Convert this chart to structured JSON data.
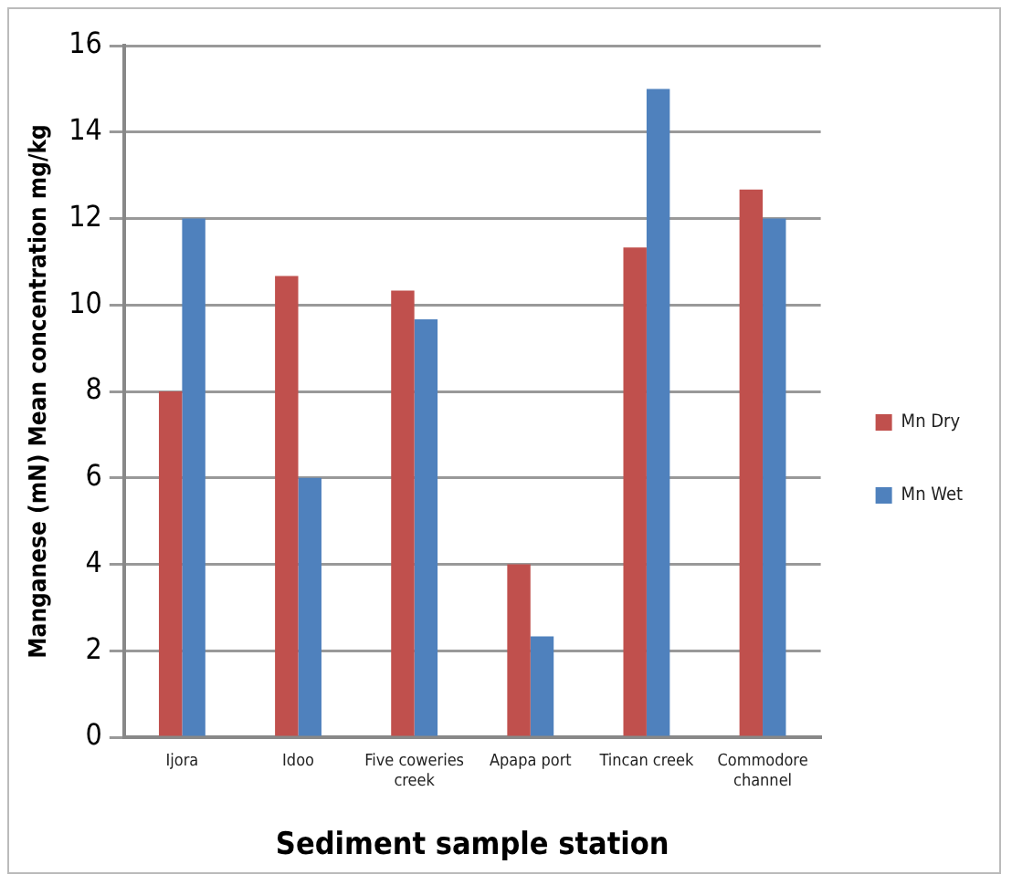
{
  "chart_data": {
    "type": "bar",
    "xlabel": "Sediment sample station",
    "ylabel": "Manganese (mN) Mean concentration mg/kg",
    "categories": [
      "Ijora",
      "Idoo",
      "Five coweries creek",
      "Apapa port",
      "Tincan creek",
      "Commodore channel"
    ],
    "series": [
      {
        "name": "Mn Dry",
        "color": "#c0504d",
        "values": [
          8,
          10.67,
          10.33,
          4,
          11.33,
          12.67
        ]
      },
      {
        "name": "Mn Wet",
        "color": "#4f81bd",
        "values": [
          12,
          6,
          9.67,
          2.33,
          15,
          12
        ]
      }
    ],
    "ylim": [
      0,
      16
    ],
    "yticks": [
      0,
      2,
      4,
      6,
      8,
      10,
      12,
      14,
      16
    ],
    "grid": "y",
    "legend": "right"
  }
}
